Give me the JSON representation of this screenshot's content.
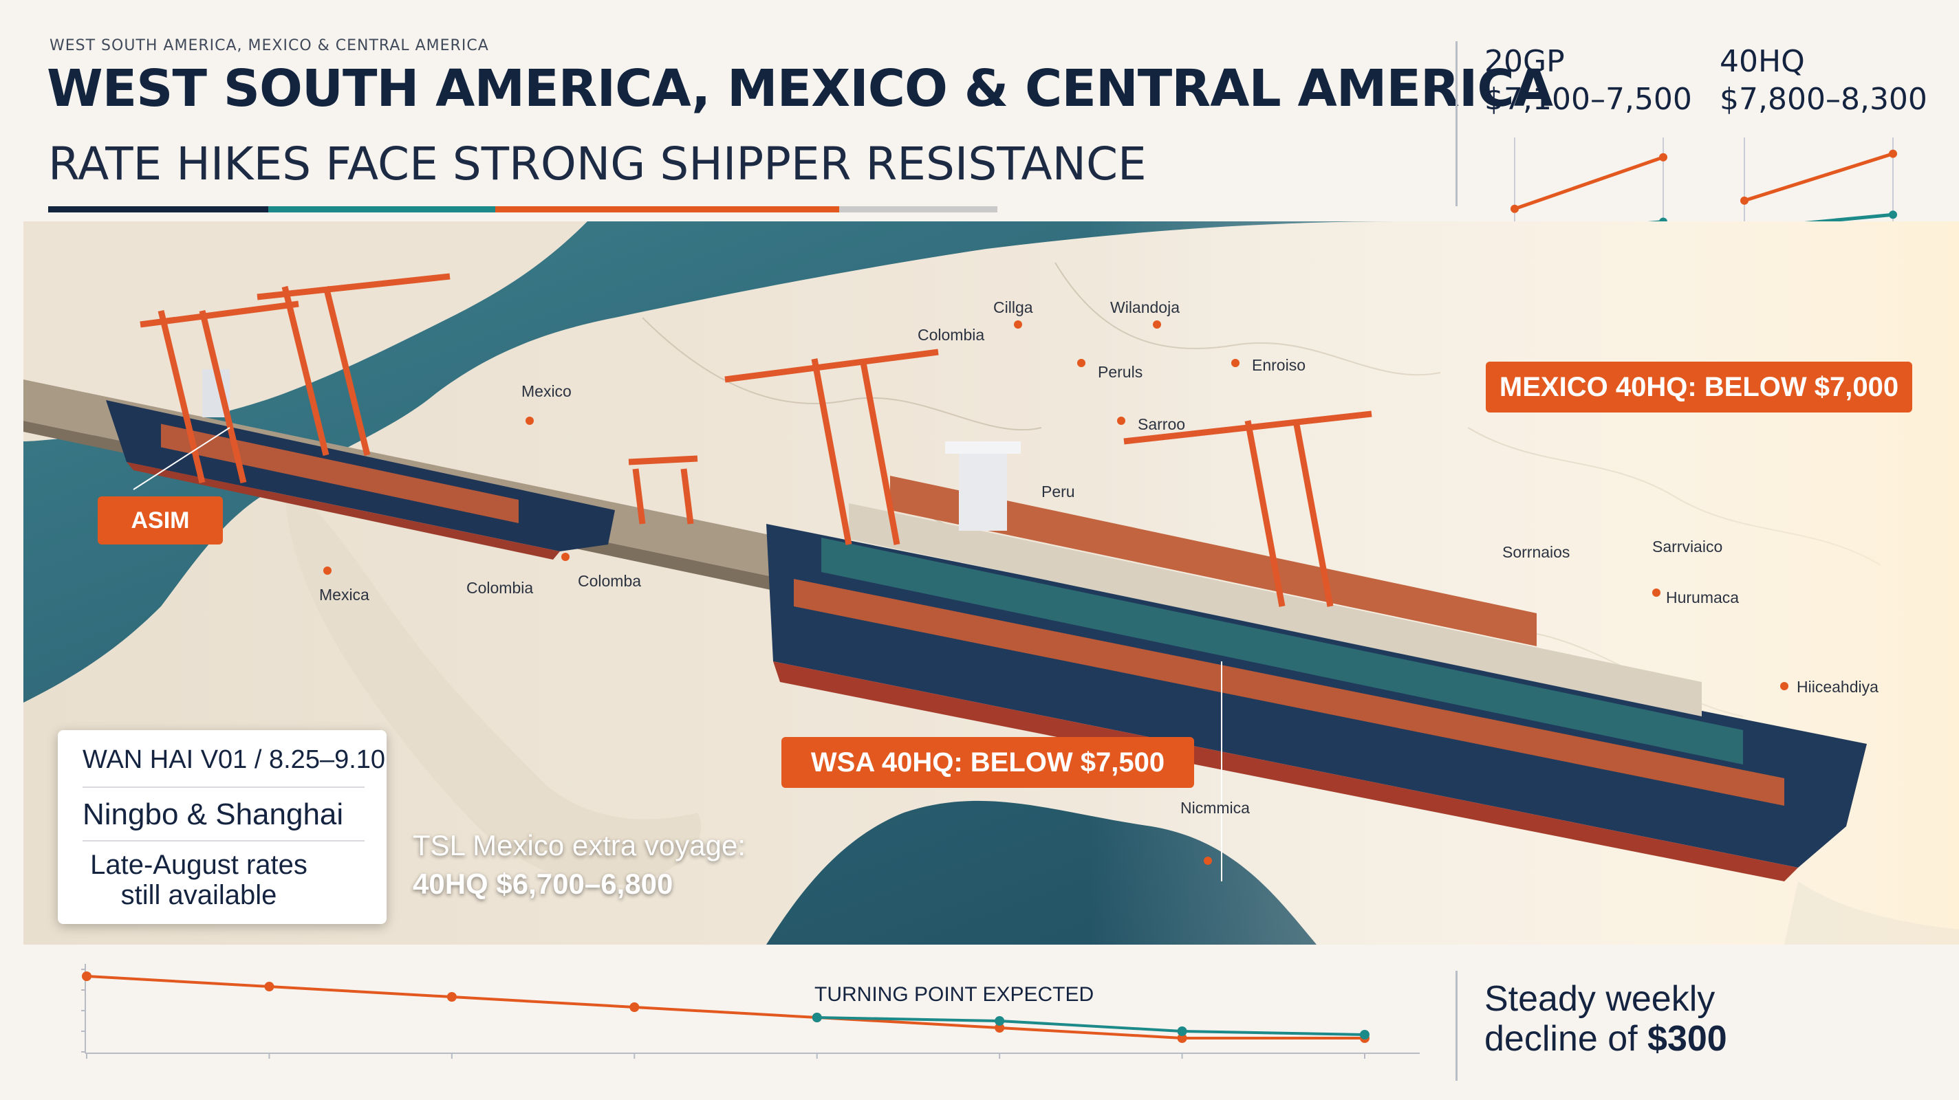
{
  "header": {
    "kicker": "WEST SOUTH AMERICA, MEXICO & CENTRAL AMERICA",
    "title": "WEST SOUTH AMERICA, MEXICO & CENTRAL AMERICA",
    "subtitle": "RATE HIKES FACE STRONG SHIPPER RESISTANCE"
  },
  "rates": [
    {
      "label": "20GP",
      "range": "$7,100–7,500"
    },
    {
      "label": "40HQ",
      "range": "$7,800–8,300"
    }
  ],
  "tags": {
    "mexico_40hq": "MEXICO 40HQ: BELOW $7,000",
    "wsa_40hq": "WSA 40HQ: BELOW $7,500",
    "asim": "ASIM"
  },
  "places": [
    "Cillga",
    "Wilandoja",
    "Colombia",
    "Mexico",
    "Peruls",
    "Enroiso",
    "Sarroo",
    "Peru",
    "Mexica",
    "Colombia",
    "Colomba",
    "Sorrnaios",
    "Sarrviaico",
    "Hurumaca",
    "Hiiceahdiya",
    "Nicmmica"
  ],
  "card": {
    "vessel": "WAN HAI V01 / 8.25–9.10",
    "ports": "Ningbo & Shanghai",
    "note_line1": "Late-August rates",
    "note_line2": "still available"
  },
  "tsl": {
    "line1": "TSL Mexico extra voyage:",
    "line2": "40HQ $6,700–6,800"
  },
  "trend": {
    "annotation": "TURNING POINT EXPECTED",
    "steady_line1": "Steady weekly",
    "steady_line2_prefix": "decline of ",
    "steady_line2_value": "$300"
  },
  "colors": {
    "navy": "#13243f",
    "orange": "#e3581f",
    "teal": "#1d8a8a",
    "sea": "#2f6f7e",
    "land": "#efe6d8"
  },
  "chart_data": [
    {
      "type": "line",
      "title": "",
      "panel": "20GP",
      "x": [
        0,
        1
      ],
      "series": [
        {
          "values": [
            7100,
            7500
          ]
        },
        {
          "values": [
            6900,
            7000
          ]
        }
      ],
      "ylim": [
        6800,
        7600
      ]
    },
    {
      "type": "line",
      "title": "",
      "panel": "40HQ",
      "x": [
        0,
        1
      ],
      "series": [
        {
          "values": [
            7800,
            8300
          ]
        },
        {
          "values": [
            7500,
            7650
          ]
        }
      ],
      "ylim": [
        7300,
        8400
      ]
    },
    {
      "type": "line",
      "title": "",
      "x": [
        0,
        1,
        2,
        3,
        4,
        5,
        6,
        7
      ],
      "series": [
        {
          "values": [
            8200,
            7900,
            7600,
            7300,
            7000,
            6700,
            6400,
            6400
          ]
        },
        {
          "values": [
            null,
            null,
            null,
            null,
            7000,
            6900,
            6600,
            6500
          ]
        }
      ],
      "ylim": [
        6000,
        8400
      ],
      "annotations": [
        "TURNING POINT EXPECTED"
      ]
    }
  ]
}
